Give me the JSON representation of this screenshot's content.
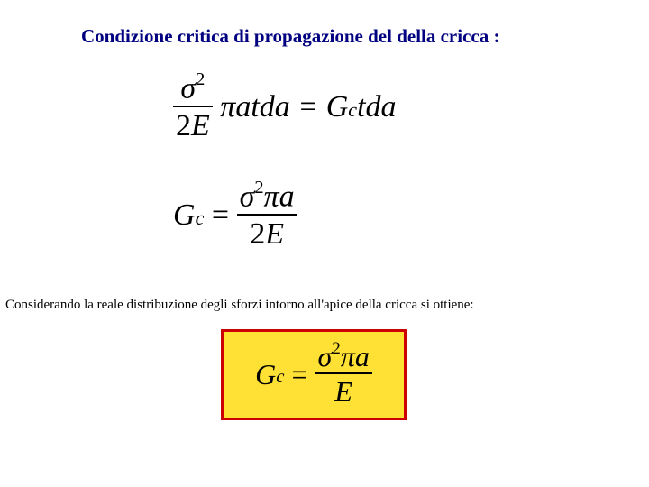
{
  "title": "Condizione critica di propagazione del della cricca :",
  "title_color": "#000080",
  "eq1": {
    "num_sigma": "σ",
    "num_exp": "2",
    "den_text1": "2",
    "den_text2": "E",
    "mid": "πatda = G",
    "sub_c": "c",
    "tail": "tda",
    "fontsize": 34
  },
  "eq2": {
    "lhs_G": "G",
    "lhs_sub": "c",
    "eq": " = ",
    "num_sigma": "σ",
    "num_exp": "2",
    "num_pi": "π",
    "num_a": "a",
    "den_text1": "2",
    "den_text2": "E",
    "fontsize": 34
  },
  "note": "Considerando la reale distribuzione degli sforzi intorno all'apice della cricca si ottiene:",
  "eq3": {
    "lhs_G": "G",
    "lhs_sub": "c",
    "eq": " = ",
    "num_sigma": "σ",
    "num_exp": "2",
    "num_pi": "π",
    "num_a": "a",
    "den_text": "E",
    "fontsize": 32,
    "box_border": "#cc0000",
    "box_bg": "#ffe135"
  }
}
